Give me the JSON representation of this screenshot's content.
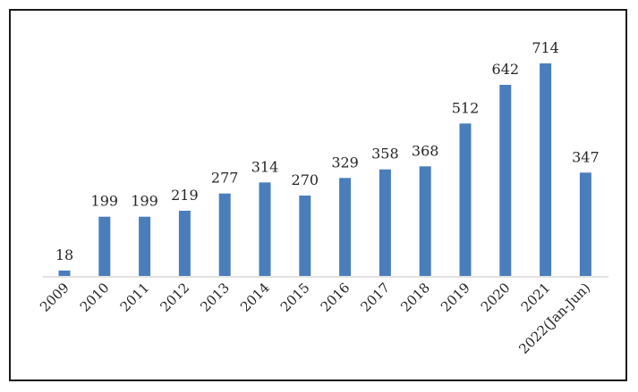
{
  "chart_data": {
    "type": "bar",
    "title": "",
    "xlabel": "",
    "ylabel": "",
    "categories": [
      "2009",
      "2010",
      "2011",
      "2012",
      "2013",
      "2014",
      "2015",
      "2016",
      "2017",
      "2018",
      "2019",
      "2020",
      "2021",
      "2022(Jan-Jun)"
    ],
    "values": [
      18,
      199,
      199,
      219,
      277,
      314,
      270,
      329,
      358,
      368,
      512,
      642,
      714,
      347
    ],
    "ylim": [
      0,
      714
    ],
    "grid": false,
    "legend": "none",
    "bar_color": "#4a7ebb",
    "axis_color": "#d9d9d9"
  }
}
